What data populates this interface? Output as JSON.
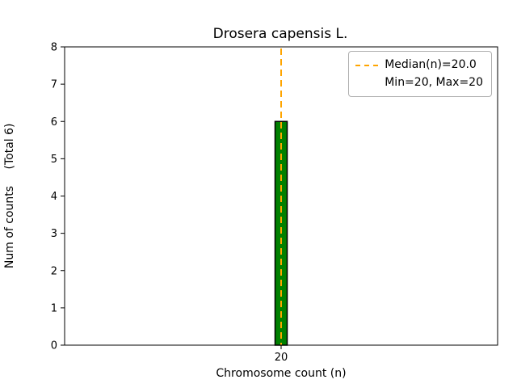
{
  "chart_data": {
    "type": "bar",
    "title": "Drosera capensis L.",
    "xlabel": "Chromosome count (n)",
    "ylabel": "Num of counts",
    "ylabel_note": "(Total 6)",
    "categories": [
      "20"
    ],
    "values": [
      6
    ],
    "ylim": [
      0,
      8
    ],
    "yticks": [
      0,
      1,
      2,
      3,
      4,
      5,
      6,
      7,
      8
    ],
    "total": 6,
    "min": 20,
    "max": 20,
    "bar_color": "#008000",
    "bar_edge_color": "#000000",
    "median_line": {
      "value": 20.0,
      "color": "#FFA500",
      "style": "dashed"
    },
    "legend": {
      "position": "upper right",
      "entries": [
        {
          "label": "Median(n)=20.0",
          "marker": "dashed-line",
          "color": "#FFA500"
        },
        {
          "label": "Min=20, Max=20",
          "marker": "none",
          "color": ""
        }
      ]
    }
  }
}
